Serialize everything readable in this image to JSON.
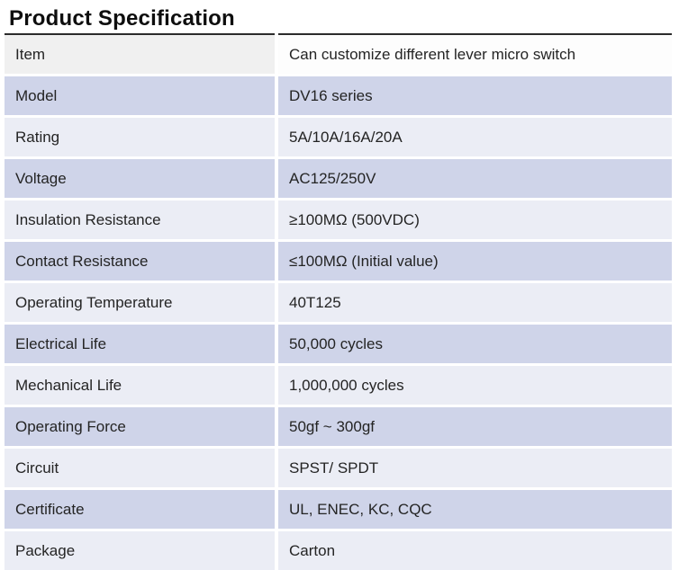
{
  "page": {
    "title": "Product Specification"
  },
  "table": {
    "rows": [
      {
        "label": "Item",
        "value": "Can customize different lever micro switch"
      },
      {
        "label": "Model",
        "value": "DV16 series"
      },
      {
        "label": "Rating",
        "value": "5A/10A/16A/20A"
      },
      {
        "label": "Voltage",
        "value": "AC125/250V"
      },
      {
        "label": "Insulation Resistance",
        "value": "≥100MΩ (500VDC)"
      },
      {
        "label": "Contact Resistance",
        "value": "≤100MΩ (Initial value)"
      },
      {
        "label": "Operating Temperature",
        "value": "40T125"
      },
      {
        "label": "Electrical Life",
        "value": "50,000 cycles"
      },
      {
        "label": "Mechanical Life",
        "value": "1,000,000 cycles"
      },
      {
        "label": "Operating Force",
        "value": "50gf ~  300gf"
      },
      {
        "label": "Circuit",
        "value": "SPST/ SPDT"
      },
      {
        "label": "Certificate",
        "value": "UL, ENEC, KC, CQC"
      },
      {
        "label": "Package",
        "value": "Carton"
      }
    ]
  },
  "colors": {
    "row_lavender": "#cfd4e9",
    "row_light": "#ebedf5",
    "header_left": "#f0f0f0",
    "header_right": "#fdfdfd",
    "top_border": "#2b2b2b"
  }
}
